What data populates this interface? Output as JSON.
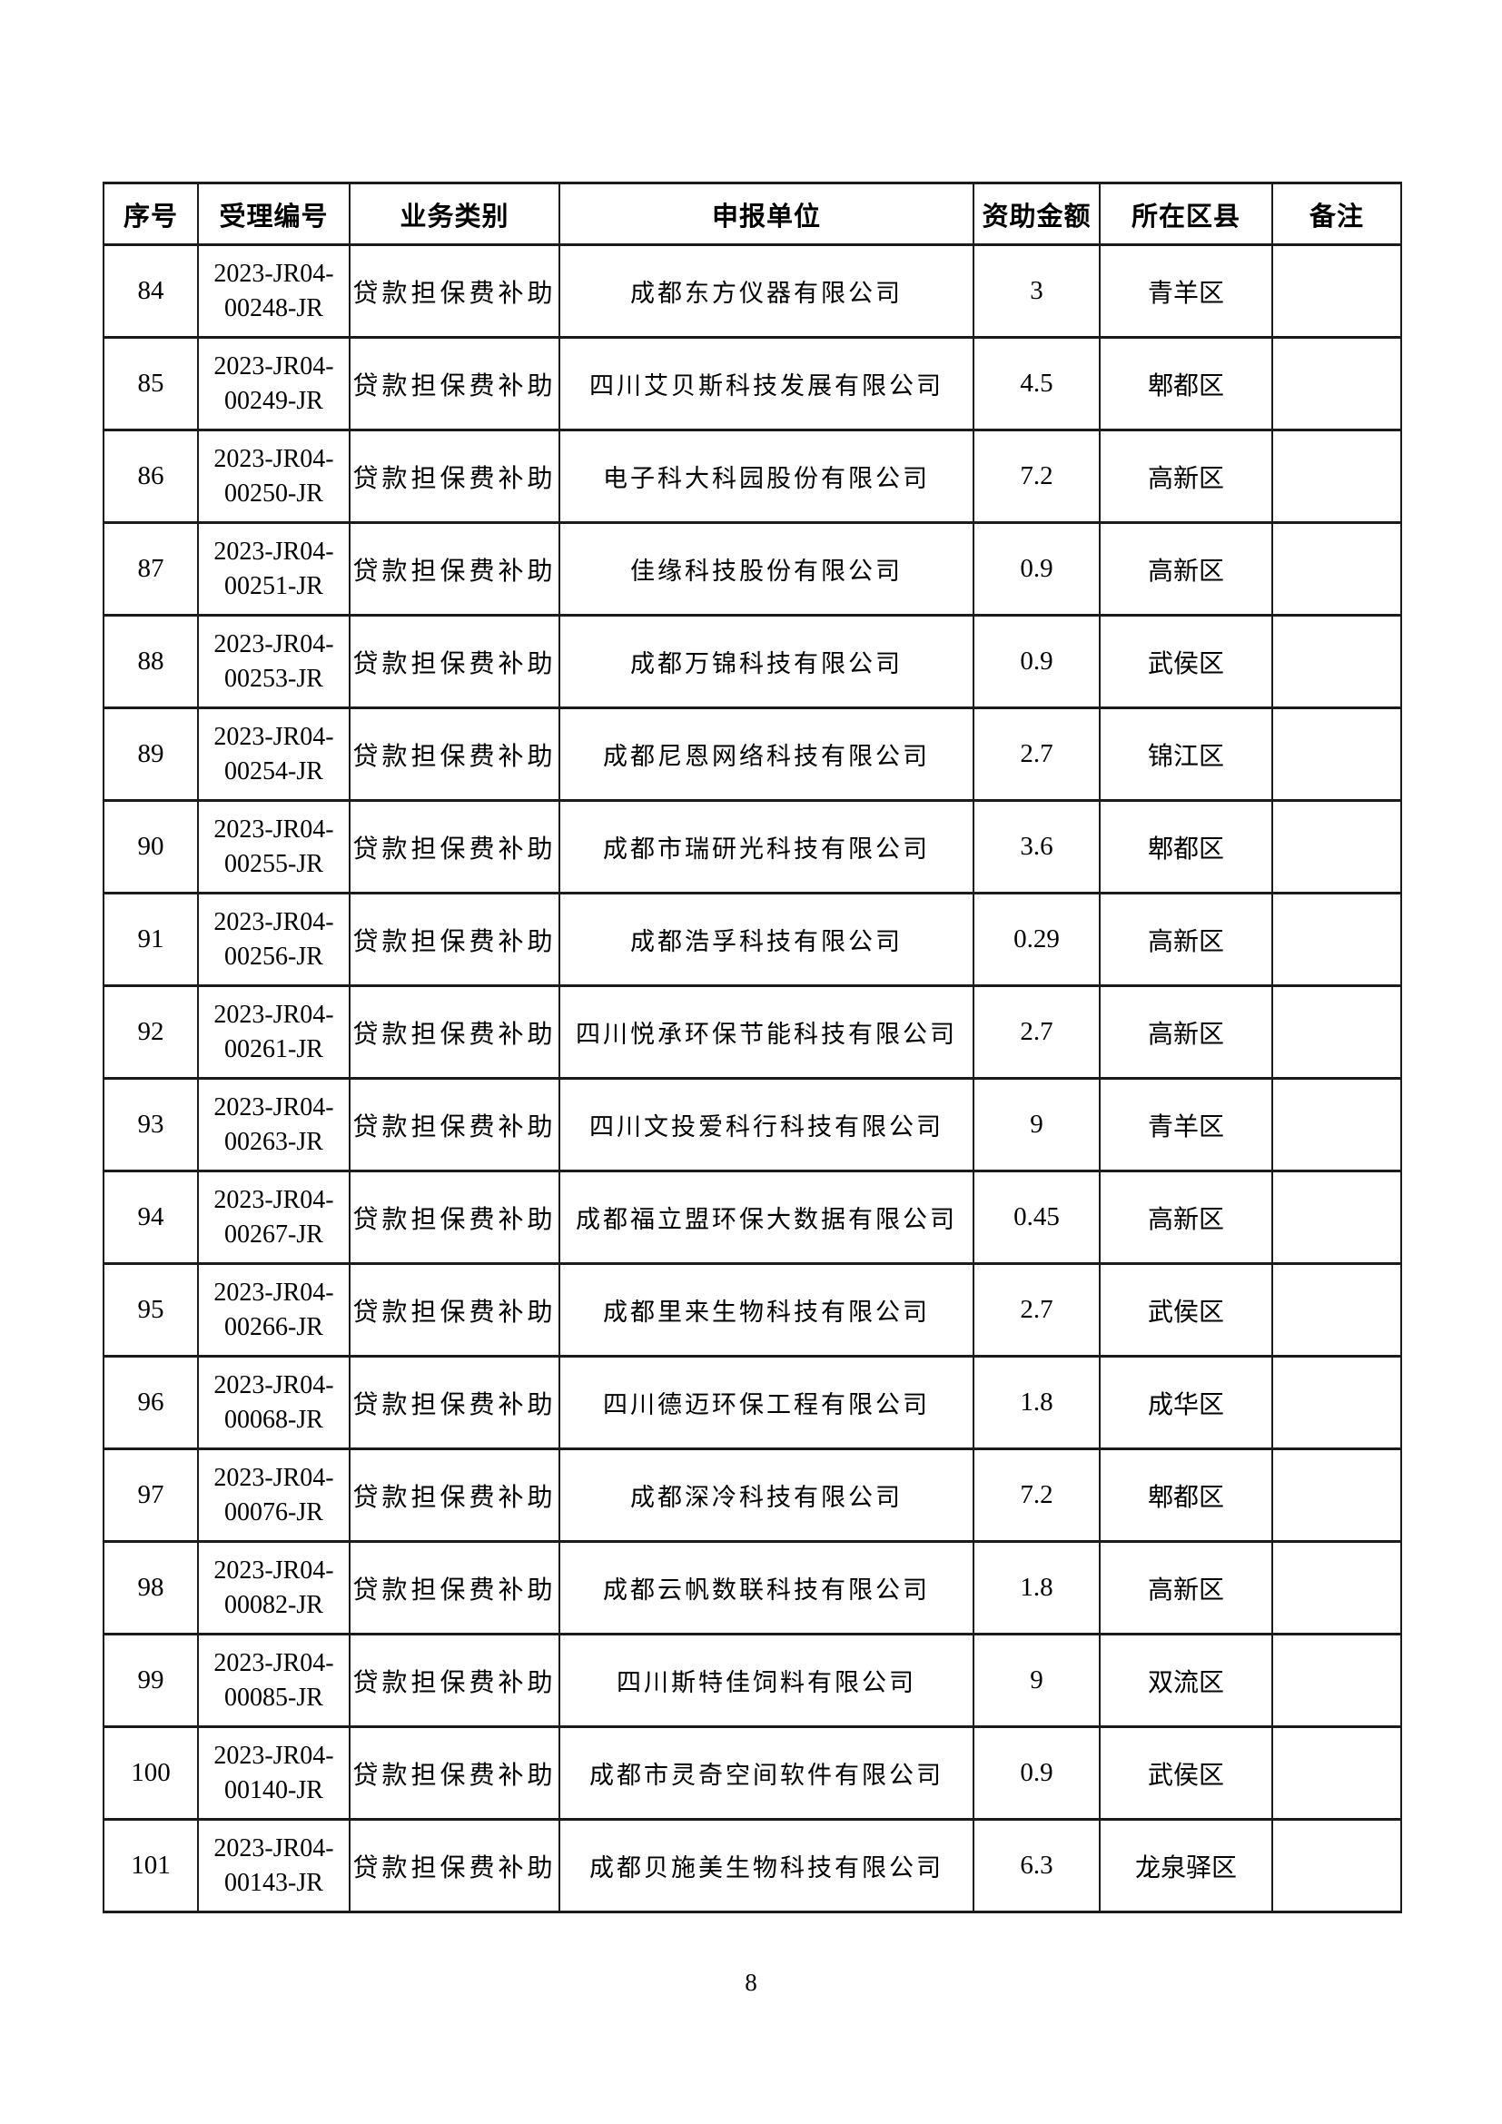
{
  "page": {
    "number": "8"
  },
  "table": {
    "columns": [
      {
        "key": "index",
        "label": "序号"
      },
      {
        "key": "code",
        "label": "受理编号"
      },
      {
        "key": "category",
        "label": "业务类别"
      },
      {
        "key": "applicant",
        "label": "申报单位"
      },
      {
        "key": "amount",
        "label": "资助金额"
      },
      {
        "key": "district",
        "label": "所在区县"
      },
      {
        "key": "remark",
        "label": "备注"
      }
    ],
    "rows": [
      {
        "index": "84",
        "code": "2023-JR04-\n00248-JR",
        "category": "贷款担保费补助",
        "applicant": "成都东方仪器有限公司",
        "amount": "3",
        "district": "青羊区",
        "remark": ""
      },
      {
        "index": "85",
        "code": "2023-JR04-\n00249-JR",
        "category": "贷款担保费补助",
        "applicant": "四川艾贝斯科技发展有限公司",
        "amount": "4.5",
        "district": "郫都区",
        "remark": ""
      },
      {
        "index": "86",
        "code": "2023-JR04-\n00250-JR",
        "category": "贷款担保费补助",
        "applicant": "电子科大科园股份有限公司",
        "amount": "7.2",
        "district": "高新区",
        "remark": ""
      },
      {
        "index": "87",
        "code": "2023-JR04-\n00251-JR",
        "category": "贷款担保费补助",
        "applicant": "佳缘科技股份有限公司",
        "amount": "0.9",
        "district": "高新区",
        "remark": ""
      },
      {
        "index": "88",
        "code": "2023-JR04-\n00253-JR",
        "category": "贷款担保费补助",
        "applicant": "成都万锦科技有限公司",
        "amount": "0.9",
        "district": "武侯区",
        "remark": ""
      },
      {
        "index": "89",
        "code": "2023-JR04-\n00254-JR",
        "category": "贷款担保费补助",
        "applicant": "成都尼恩网络科技有限公司",
        "amount": "2.7",
        "district": "锦江区",
        "remark": ""
      },
      {
        "index": "90",
        "code": "2023-JR04-\n00255-JR",
        "category": "贷款担保费补助",
        "applicant": "成都市瑞研光科技有限公司",
        "amount": "3.6",
        "district": "郫都区",
        "remark": ""
      },
      {
        "index": "91",
        "code": "2023-JR04-\n00256-JR",
        "category": "贷款担保费补助",
        "applicant": "成都浩孚科技有限公司",
        "amount": "0.29",
        "district": "高新区",
        "remark": ""
      },
      {
        "index": "92",
        "code": "2023-JR04-\n00261-JR",
        "category": "贷款担保费补助",
        "applicant": "四川悦承环保节能科技有限公司",
        "amount": "2.7",
        "district": "高新区",
        "remark": ""
      },
      {
        "index": "93",
        "code": "2023-JR04-\n00263-JR",
        "category": "贷款担保费补助",
        "applicant": "四川文投爱科行科技有限公司",
        "amount": "9",
        "district": "青羊区",
        "remark": ""
      },
      {
        "index": "94",
        "code": "2023-JR04-\n00267-JR",
        "category": "贷款担保费补助",
        "applicant": "成都福立盟环保大数据有限公司",
        "amount": "0.45",
        "district": "高新区",
        "remark": ""
      },
      {
        "index": "95",
        "code": "2023-JR04-\n00266-JR",
        "category": "贷款担保费补助",
        "applicant": "成都里来生物科技有限公司",
        "amount": "2.7",
        "district": "武侯区",
        "remark": ""
      },
      {
        "index": "96",
        "code": "2023-JR04-\n00068-JR",
        "category": "贷款担保费补助",
        "applicant": "四川德迈环保工程有限公司",
        "amount": "1.8",
        "district": "成华区",
        "remark": ""
      },
      {
        "index": "97",
        "code": "2023-JR04-\n00076-JR",
        "category": "贷款担保费补助",
        "applicant": "成都深冷科技有限公司",
        "amount": "7.2",
        "district": "郫都区",
        "remark": ""
      },
      {
        "index": "98",
        "code": "2023-JR04-\n00082-JR",
        "category": "贷款担保费补助",
        "applicant": "成都云帆数联科技有限公司",
        "amount": "1.8",
        "district": "高新区",
        "remark": ""
      },
      {
        "index": "99",
        "code": "2023-JR04-\n00085-JR",
        "category": "贷款担保费补助",
        "applicant": "四川斯特佳饲料有限公司",
        "amount": "9",
        "district": "双流区",
        "remark": ""
      },
      {
        "index": "100",
        "code": "2023-JR04-\n00140-JR",
        "category": "贷款担保费补助",
        "applicant": "成都市灵奇空间软件有限公司",
        "amount": "0.9",
        "district": "武侯区",
        "remark": ""
      },
      {
        "index": "101",
        "code": "2023-JR04-\n00143-JR",
        "category": "贷款担保费补助",
        "applicant": "成都贝施美生物科技有限公司",
        "amount": "6.3",
        "district": "龙泉驿区",
        "remark": ""
      }
    ]
  }
}
